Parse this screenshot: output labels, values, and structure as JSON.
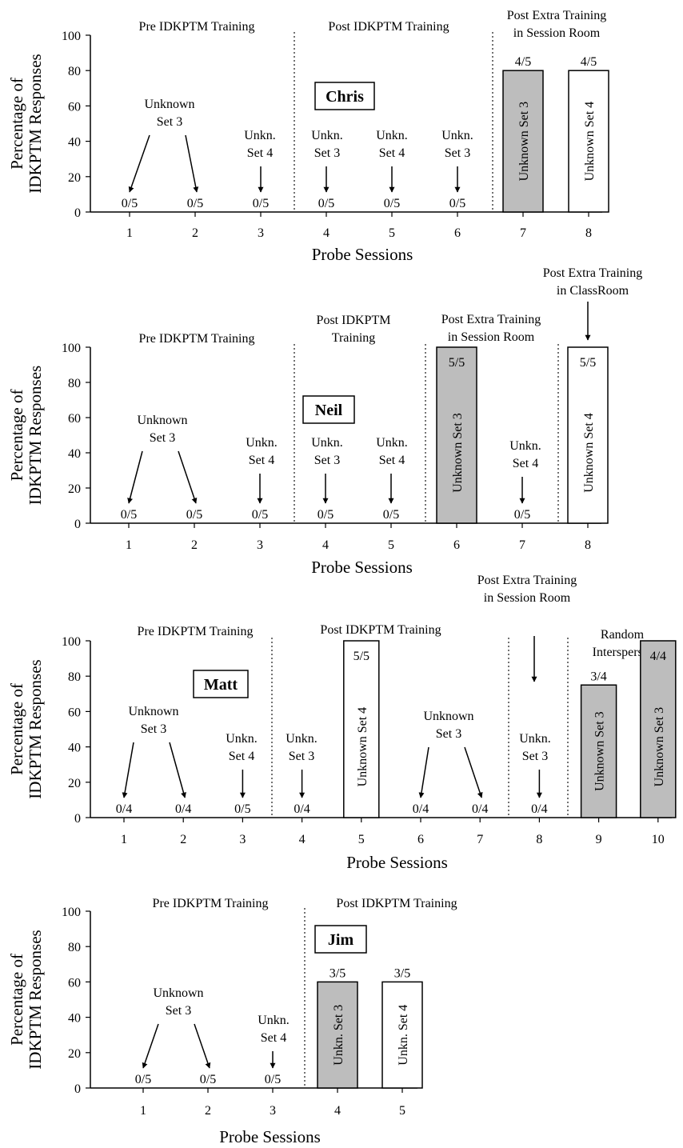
{
  "figure": {
    "y_axis_label_line1": "Percentage of",
    "y_axis_label_line2": "IDKPTM Responses",
    "x_axis_label": "Probe Sessions",
    "y_ticks": [
      "0",
      "20",
      "40",
      "60",
      "80",
      "100"
    ]
  },
  "chart_data": [
    {
      "type": "bar",
      "participant": "Chris",
      "xlabel": "Probe Sessions",
      "ylabel": "Percentage of IDKPTM Responses",
      "ylim": [
        0,
        100
      ],
      "sessions": [
        1,
        2,
        3,
        4,
        5,
        6,
        7,
        8
      ],
      "values": [
        0,
        0,
        0,
        0,
        0,
        0,
        80,
        80
      ],
      "fractions": [
        "0/5",
        "0/5",
        "0/5",
        "0/5",
        "0/5",
        "0/5",
        "4/5",
        "4/5"
      ],
      "bars": [
        {
          "session": 7,
          "value": 80,
          "fraction": "4/5",
          "label": "Unknown Set 3",
          "fill": "#bdbdbd"
        },
        {
          "session": 8,
          "value": 80,
          "fraction": "4/5",
          "label": "Unknown Set 4",
          "fill": "#ffffff"
        }
      ],
      "phases": [
        {
          "lines": [
            "Pre IDKPTM Training"
          ]
        },
        {
          "lines": [
            "Post IDKPTM Training"
          ]
        },
        {
          "lines": [
            "Post Extra Training",
            "in Session Room"
          ]
        }
      ],
      "annotations": [
        {
          "lines": [
            "Unknown",
            "Set 3"
          ],
          "targets": [
            1,
            2
          ]
        },
        {
          "lines": [
            "Unkn.",
            "Set 4"
          ],
          "targets": [
            3
          ]
        },
        {
          "lines": [
            "Unkn.",
            "Set 3"
          ],
          "targets": [
            4
          ]
        },
        {
          "lines": [
            "Unkn.",
            "Set 4"
          ],
          "targets": [
            5
          ]
        },
        {
          "lines": [
            "Unkn.",
            "Set 3"
          ],
          "targets": [
            6
          ]
        }
      ]
    },
    {
      "type": "bar",
      "participant": "Neil",
      "xlabel": "Probe Sessions",
      "ylabel": "Percentage of IDKPTM Responses",
      "ylim": [
        0,
        100
      ],
      "sessions": [
        1,
        2,
        3,
        4,
        5,
        6,
        7,
        8
      ],
      "values": [
        0,
        0,
        0,
        0,
        0,
        100,
        0,
        100
      ],
      "fractions": [
        "0/5",
        "0/5",
        "0/5",
        "0/5",
        "0/5",
        "5/5",
        "0/5",
        "5/5"
      ],
      "bars": [
        {
          "session": 6,
          "value": 100,
          "fraction": "5/5",
          "label": "Unknown Set 3",
          "fill": "#bdbdbd"
        },
        {
          "session": 8,
          "value": 100,
          "fraction": "5/5",
          "label": "Unknown Set 4",
          "fill": "#ffffff"
        }
      ],
      "phases": [
        {
          "lines": [
            "Pre IDKPTM Training"
          ]
        },
        {
          "lines": [
            "Post IDKPTM",
            "Training"
          ]
        },
        {
          "lines": [
            "Post Extra Training",
            "in Session Room"
          ]
        },
        {
          "lines": [
            "Post Extra Training",
            "in ClassRoom"
          ]
        }
      ],
      "annotations": [
        {
          "lines": [
            "Unknown",
            "Set 3"
          ],
          "targets": [
            1,
            2
          ]
        },
        {
          "lines": [
            "Unkn.",
            "Set 4"
          ],
          "targets": [
            3
          ]
        },
        {
          "lines": [
            "Unkn.",
            "Set 3"
          ],
          "targets": [
            4
          ]
        },
        {
          "lines": [
            "Unkn.",
            "Set 4"
          ],
          "targets": [
            5
          ]
        },
        {
          "lines": [
            "Unkn.",
            "Set 4"
          ],
          "targets": [
            7
          ]
        }
      ]
    },
    {
      "type": "bar",
      "participant": "Matt",
      "xlabel": "Probe Sessions",
      "ylabel": "Percentage of IDKPTM Responses",
      "ylim": [
        0,
        100
      ],
      "sessions": [
        1,
        2,
        3,
        4,
        5,
        6,
        7,
        8,
        9,
        10
      ],
      "values": [
        0,
        0,
        0,
        0,
        100,
        0,
        0,
        0,
        75,
        100
      ],
      "fractions": [
        "0/4",
        "0/4",
        "0/5",
        "0/4",
        "5/5",
        "0/4",
        "0/4",
        "0/4",
        "3/4",
        "4/4"
      ],
      "bars": [
        {
          "session": 5,
          "value": 100,
          "fraction": "5/5",
          "label": "Unknown Set 4",
          "fill": "#ffffff"
        },
        {
          "session": 9,
          "value": 75,
          "fraction": "3/4",
          "label": "Unknown Set 3",
          "fill": "#bdbdbd"
        },
        {
          "session": 10,
          "value": 100,
          "fraction": "4/4",
          "label": "Unknown Set 3",
          "fill": "#bdbdbd"
        }
      ],
      "phases": [
        {
          "lines": [
            "Pre IDKPTM Training"
          ]
        },
        {
          "lines": [
            "Post IDKPTM Training"
          ]
        },
        {
          "lines": [
            "Post Extra Training",
            "in Session Room"
          ]
        },
        {
          "lines": [
            "Random",
            "Interspersal"
          ]
        }
      ],
      "annotations": [
        {
          "lines": [
            "Unknown",
            "Set 3"
          ],
          "targets": [
            1,
            2
          ]
        },
        {
          "lines": [
            "Unkn.",
            "Set 4"
          ],
          "targets": [
            3
          ]
        },
        {
          "lines": [
            "Unkn.",
            "Set 3"
          ],
          "targets": [
            4
          ]
        },
        {
          "lines": [
            "Unknown",
            "Set 3"
          ],
          "targets": [
            6,
            7
          ]
        },
        {
          "lines": [
            "Unkn.",
            "Set 3"
          ],
          "targets": [
            8
          ]
        }
      ]
    },
    {
      "type": "bar",
      "participant": "Jim",
      "xlabel": "Probe Sessions",
      "ylabel": "Percentage of IDKPTM Responses",
      "ylim": [
        0,
        100
      ],
      "sessions": [
        1,
        2,
        3,
        4,
        5
      ],
      "values": [
        0,
        0,
        0,
        60,
        60
      ],
      "fractions": [
        "0/5",
        "0/5",
        "0/5",
        "3/5",
        "3/5"
      ],
      "bars": [
        {
          "session": 4,
          "value": 60,
          "fraction": "3/5",
          "label": "Unkn. Set 3",
          "fill": "#bdbdbd"
        },
        {
          "session": 5,
          "value": 60,
          "fraction": "3/5",
          "label": "Unkn. Set 4",
          "fill": "#ffffff"
        }
      ],
      "phases": [
        {
          "lines": [
            "Pre IDKPTM Training"
          ]
        },
        {
          "lines": [
            "Post IDKPTM Training"
          ]
        }
      ],
      "annotations": [
        {
          "lines": [
            "Unknown",
            "Set 3"
          ],
          "targets": [
            1,
            2
          ]
        },
        {
          "lines": [
            "Unkn.",
            "Set 4"
          ],
          "targets": [
            3
          ]
        }
      ]
    }
  ]
}
